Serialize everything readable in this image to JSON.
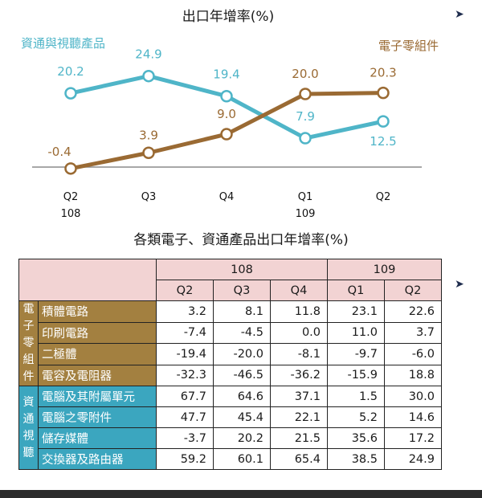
{
  "chart_data": {
    "type": "line",
    "title": "出口年增率(%)",
    "categories": [
      "Q2",
      "Q3",
      "Q4",
      "Q1",
      "Q2"
    ],
    "category_sublabels": [
      "108",
      "",
      "",
      "109",
      ""
    ],
    "series": [
      {
        "name": "資通與視聽產品",
        "color": "#4fb5c8",
        "values": [
          20.2,
          24.9,
          19.4,
          7.9,
          12.5
        ]
      },
      {
        "name": "電子零組件",
        "color": "#9a6a33",
        "values": [
          -0.4,
          3.9,
          9.0,
          20.0,
          20.3
        ]
      }
    ],
    "value_labels": [
      [
        "20.2",
        "24.9",
        "19.4",
        "7.9",
        "12.5"
      ],
      [
        "-0.4",
        "3.9",
        "9.0",
        "20.0",
        "20.3"
      ]
    ],
    "ylim": [
      0,
      28
    ],
    "legend": "top-left / top-right",
    "grid": false
  },
  "table": {
    "title": "各類電子、資通產品出口年增率(%)",
    "year_headers": [
      "108",
      "109"
    ],
    "quarter_headers": [
      "Q2",
      "Q3",
      "Q4",
      "Q1",
      "Q2"
    ],
    "groups": [
      {
        "label": "電子零組件",
        "rows": [
          {
            "name": "積體電路",
            "values": [
              "3.2",
              "8.1",
              "11.8",
              "23.1",
              "22.6"
            ]
          },
          {
            "name": "印刷電路",
            "values": [
              "-7.4",
              "-4.5",
              "0.0",
              "11.0",
              "3.7"
            ]
          },
          {
            "name": "二極體",
            "values": [
              "-19.4",
              "-20.0",
              "-8.1",
              "-9.7",
              "-6.0"
            ]
          },
          {
            "name": "電容及電阻器",
            "values": [
              "-32.3",
              "-46.5",
              "-36.2",
              "-15.9",
              "18.8"
            ]
          }
        ]
      },
      {
        "label": "資通視聽",
        "rows": [
          {
            "name": "電腦及其附屬單元",
            "values": [
              "67.7",
              "64.6",
              "37.1",
              "1.5",
              "30.0"
            ]
          },
          {
            "name": "電腦之零附件",
            "values": [
              "47.7",
              "45.4",
              "22.1",
              "5.2",
              "14.6"
            ]
          },
          {
            "name": "儲存媒體",
            "values": [
              "-3.7",
              "20.2",
              "21.5",
              "35.6",
              "17.2"
            ]
          },
          {
            "name": "交換器及路由器",
            "values": [
              "59.2",
              "60.1",
              "65.4",
              "38.5",
              "24.9"
            ]
          }
        ]
      }
    ]
  },
  "decor": {
    "arrow": "➤"
  }
}
